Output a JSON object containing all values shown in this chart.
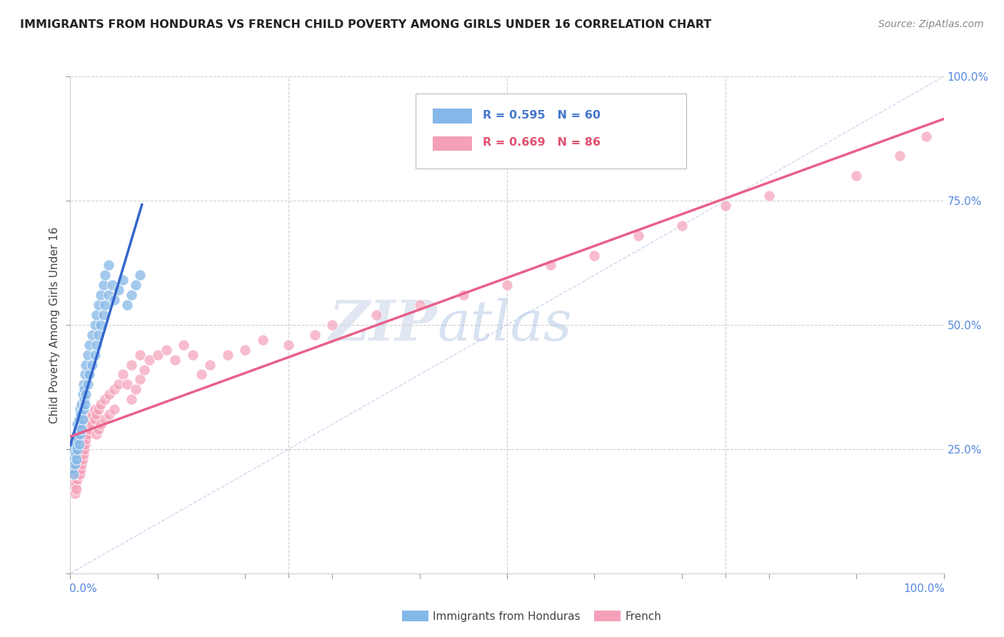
{
  "title": "IMMIGRANTS FROM HONDURAS VS FRENCH CHILD POVERTY AMONG GIRLS UNDER 16 CORRELATION CHART",
  "source": "Source: ZipAtlas.com",
  "ylabel": "Child Poverty Among Girls Under 16",
  "legend_honduras": "Immigrants from Honduras",
  "legend_french": "French",
  "r_honduras": 0.595,
  "n_honduras": 60,
  "r_french": 0.669,
  "n_french": 86,
  "color_honduras": "#85b8e8",
  "color_french": "#f4a0b8",
  "regression_honduras": "#3366cc",
  "regression_french": "#e8608a",
  "diagonal_color": "#b8c8e8",
  "watermark_zip": "ZIP",
  "watermark_atlas": "atlas",
  "honduras_points": [
    [
      0.002,
      0.21
    ],
    [
      0.003,
      0.23
    ],
    [
      0.004,
      0.2
    ],
    [
      0.004,
      0.25
    ],
    [
      0.005,
      0.22
    ],
    [
      0.005,
      0.27
    ],
    [
      0.006,
      0.24
    ],
    [
      0.006,
      0.26
    ],
    [
      0.007,
      0.23
    ],
    [
      0.007,
      0.28
    ],
    [
      0.008,
      0.25
    ],
    [
      0.008,
      0.3
    ],
    [
      0.009,
      0.27
    ],
    [
      0.009,
      0.29
    ],
    [
      0.01,
      0.26
    ],
    [
      0.01,
      0.31
    ],
    [
      0.011,
      0.28
    ],
    [
      0.011,
      0.33
    ],
    [
      0.012,
      0.3
    ],
    [
      0.012,
      0.32
    ],
    [
      0.013,
      0.29
    ],
    [
      0.013,
      0.34
    ],
    [
      0.014,
      0.31
    ],
    [
      0.014,
      0.36
    ],
    [
      0.015,
      0.33
    ],
    [
      0.015,
      0.38
    ],
    [
      0.016,
      0.35
    ],
    [
      0.016,
      0.37
    ],
    [
      0.017,
      0.34
    ],
    [
      0.017,
      0.4
    ],
    [
      0.018,
      0.36
    ],
    [
      0.018,
      0.42
    ],
    [
      0.02,
      0.38
    ],
    [
      0.02,
      0.44
    ],
    [
      0.022,
      0.4
    ],
    [
      0.022,
      0.46
    ],
    [
      0.025,
      0.42
    ],
    [
      0.025,
      0.48
    ],
    [
      0.028,
      0.44
    ],
    [
      0.028,
      0.5
    ],
    [
      0.03,
      0.46
    ],
    [
      0.03,
      0.52
    ],
    [
      0.032,
      0.48
    ],
    [
      0.032,
      0.54
    ],
    [
      0.035,
      0.5
    ],
    [
      0.035,
      0.56
    ],
    [
      0.038,
      0.52
    ],
    [
      0.038,
      0.58
    ],
    [
      0.04,
      0.54
    ],
    [
      0.04,
      0.6
    ],
    [
      0.044,
      0.56
    ],
    [
      0.044,
      0.62
    ],
    [
      0.048,
      0.58
    ],
    [
      0.05,
      0.55
    ],
    [
      0.055,
      0.57
    ],
    [
      0.06,
      0.59
    ],
    [
      0.065,
      0.54
    ],
    [
      0.07,
      0.56
    ],
    [
      0.075,
      0.58
    ],
    [
      0.08,
      0.6
    ]
  ],
  "french_points": [
    [
      0.003,
      0.18
    ],
    [
      0.004,
      0.2
    ],
    [
      0.005,
      0.16
    ],
    [
      0.005,
      0.22
    ],
    [
      0.006,
      0.18
    ],
    [
      0.006,
      0.2
    ],
    [
      0.007,
      0.17
    ],
    [
      0.007,
      0.21
    ],
    [
      0.008,
      0.19
    ],
    [
      0.008,
      0.22
    ],
    [
      0.009,
      0.2
    ],
    [
      0.009,
      0.23
    ],
    [
      0.01,
      0.21
    ],
    [
      0.01,
      0.24
    ],
    [
      0.011,
      0.22
    ],
    [
      0.011,
      0.2
    ],
    [
      0.012,
      0.23
    ],
    [
      0.012,
      0.21
    ],
    [
      0.013,
      0.24
    ],
    [
      0.013,
      0.22
    ],
    [
      0.014,
      0.25
    ],
    [
      0.014,
      0.23
    ],
    [
      0.015,
      0.26
    ],
    [
      0.015,
      0.24
    ],
    [
      0.016,
      0.27
    ],
    [
      0.016,
      0.25
    ],
    [
      0.017,
      0.28
    ],
    [
      0.017,
      0.26
    ],
    [
      0.018,
      0.27
    ],
    [
      0.018,
      0.29
    ],
    [
      0.02,
      0.28
    ],
    [
      0.02,
      0.3
    ],
    [
      0.022,
      0.29
    ],
    [
      0.022,
      0.31
    ],
    [
      0.025,
      0.3
    ],
    [
      0.025,
      0.32
    ],
    [
      0.028,
      0.31
    ],
    [
      0.028,
      0.33
    ],
    [
      0.03,
      0.32
    ],
    [
      0.03,
      0.28
    ],
    [
      0.032,
      0.29
    ],
    [
      0.032,
      0.33
    ],
    [
      0.035,
      0.3
    ],
    [
      0.035,
      0.34
    ],
    [
      0.04,
      0.31
    ],
    [
      0.04,
      0.35
    ],
    [
      0.045,
      0.32
    ],
    [
      0.045,
      0.36
    ],
    [
      0.05,
      0.33
    ],
    [
      0.05,
      0.37
    ],
    [
      0.055,
      0.38
    ],
    [
      0.06,
      0.4
    ],
    [
      0.065,
      0.38
    ],
    [
      0.07,
      0.35
    ],
    [
      0.07,
      0.42
    ],
    [
      0.075,
      0.37
    ],
    [
      0.08,
      0.39
    ],
    [
      0.08,
      0.44
    ],
    [
      0.085,
      0.41
    ],
    [
      0.09,
      0.43
    ],
    [
      0.1,
      0.44
    ],
    [
      0.11,
      0.45
    ],
    [
      0.12,
      0.43
    ],
    [
      0.13,
      0.46
    ],
    [
      0.14,
      0.44
    ],
    [
      0.15,
      0.4
    ],
    [
      0.16,
      0.42
    ],
    [
      0.18,
      0.44
    ],
    [
      0.2,
      0.45
    ],
    [
      0.22,
      0.47
    ],
    [
      0.25,
      0.46
    ],
    [
      0.28,
      0.48
    ],
    [
      0.3,
      0.5
    ],
    [
      0.35,
      0.52
    ],
    [
      0.4,
      0.54
    ],
    [
      0.45,
      0.56
    ],
    [
      0.5,
      0.58
    ],
    [
      0.55,
      0.62
    ],
    [
      0.6,
      0.64
    ],
    [
      0.65,
      0.68
    ],
    [
      0.7,
      0.7
    ],
    [
      0.75,
      0.74
    ],
    [
      0.8,
      0.76
    ],
    [
      0.9,
      0.8
    ],
    [
      0.95,
      0.84
    ],
    [
      0.98,
      0.88
    ]
  ]
}
